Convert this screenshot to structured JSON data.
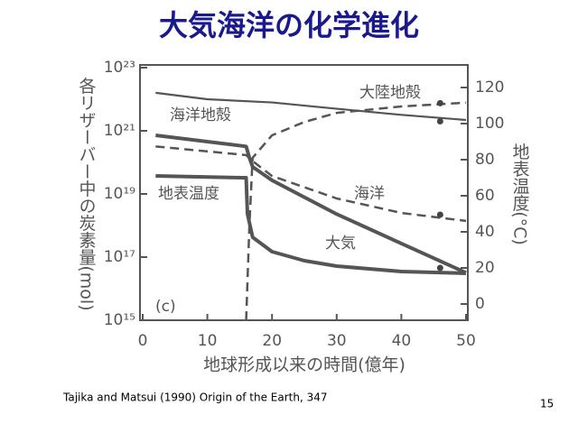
{
  "slide_title": "大気海洋の化学進化",
  "citation": "Tajika and Matsui (1990) Origin of the Earth, 347",
  "page_number": "15",
  "chart_data": {
    "type": "line",
    "xlabel": "地球形成以来の時間(億年)",
    "ylabel": "各リザーバー中の炭素量(mol)",
    "y2label": "地表温度(°C)",
    "annotation": "(c)",
    "xlim": [
      0,
      50
    ],
    "xticks": [
      0,
      10,
      20,
      30,
      40,
      50
    ],
    "ylog": true,
    "ylim": [
      1000000000000000.0,
      1e+23
    ],
    "yticks": [
      {
        "value": 1000000000000000.0,
        "label": "10¹⁵"
      },
      {
        "value": 1e+17,
        "label": "10¹⁷"
      },
      {
        "value": 1e+19,
        "label": "10¹⁹"
      },
      {
        "value": 1e+21,
        "label": "10²¹"
      },
      {
        "value": 1e+23,
        "label": "10²³"
      }
    ],
    "y2lim": [
      -9,
      131
    ],
    "y2ticks": [
      0,
      20,
      40,
      60,
      80,
      100,
      120
    ],
    "series": [
      {
        "name": "海洋地殻",
        "color": "#555555",
        "style": "thin",
        "x": [
          2,
          10,
          20,
          30,
          40,
          50
        ],
        "values": [
          1.6e+22,
          1e+22,
          7.9e+21,
          5e+21,
          3.2e+21,
          2.2e+21
        ]
      },
      {
        "name": "大陸地殻",
        "color": "#555555",
        "style": "dashed",
        "x": [
          16,
          16.5,
          17,
          20,
          25,
          30,
          40,
          50
        ],
        "values": [
          1000000000000000.0,
          1e+18,
          1.4e+20,
          7.2e+20,
          1.9e+21,
          3.7e+21,
          5.9e+21,
          7.8e+21
        ]
      },
      {
        "name": "海洋",
        "color": "#555555",
        "style": "dashed",
        "x": [
          2,
          16,
          17,
          20,
          30,
          40,
          50
        ],
        "values": [
          3.2e+20,
          1.7e+20,
          1.1e+20,
          3.7e+19,
          7.2e+18,
          2.5e+18,
          1.4e+18
        ]
      },
      {
        "name": "大気",
        "color": "#555555",
        "style": "thick",
        "x": [
          2,
          16,
          16.5,
          17,
          20,
          30,
          40,
          50
        ],
        "values": [
          7.2e+20,
          3.2e+20,
          1.4e+20,
          7.2e+19,
          2.7e+19,
          2.3e+18,
          2.7e+17,
          3.2e+16
        ]
      },
      {
        "name": "地表温度",
        "color": "#555555",
        "style": "thick",
        "axis": "y2",
        "x": [
          2,
          15.5,
          16,
          16.2,
          17,
          20,
          25,
          30,
          40,
          50
        ],
        "values": [
          71,
          70,
          70,
          50,
          37,
          29,
          24,
          21,
          18,
          17
        ]
      }
    ],
    "markers": [
      {
        "x": 46,
        "y": 2e+21
      },
      {
        "x": 46,
        "y": 7.5e+21
      },
      {
        "x": 46,
        "y": 2.2e+18
      },
      {
        "x": 46,
        "y": 20,
        "axis": "y2"
      }
    ]
  }
}
